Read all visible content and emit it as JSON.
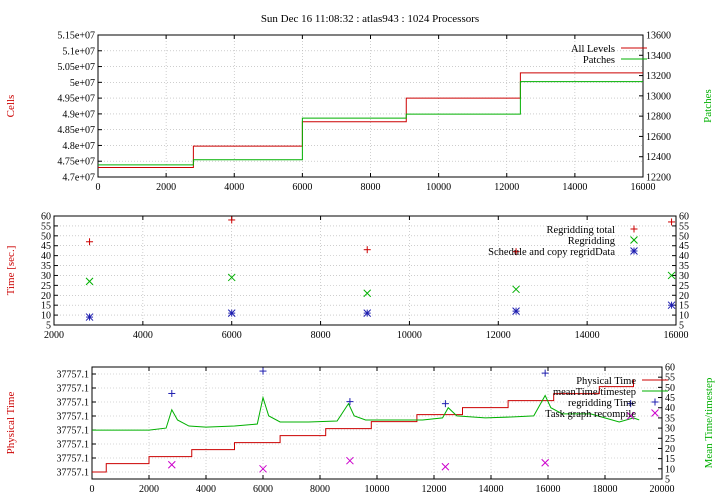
{
  "title": "Sun Dec 16 11:08:32 : atlas943 : 1024 Processors",
  "colors": {
    "red": "#cc0000",
    "green": "#00b000",
    "blue": "#1f1fb0",
    "magenta": "#cc00cc",
    "grid": "#b0b0b0",
    "axis": "#000000"
  },
  "chart_data": [
    {
      "type": "line",
      "ylabel": "Cells",
      "y2label": "Patches",
      "xlim": [
        0,
        16000
      ],
      "ylim": [
        47000000,
        51500000
      ],
      "y2lim": [
        12200,
        13600
      ],
      "xticks": [
        0,
        2000,
        4000,
        6000,
        8000,
        10000,
        12000,
        14000,
        16000
      ],
      "yticks": [
        {
          "v": 47000000,
          "label": "4.7e+07"
        },
        {
          "v": 47500000,
          "label": "4.75e+07"
        },
        {
          "v": 48000000,
          "label": "4.8e+07"
        },
        {
          "v": 48500000,
          "label": "4.85e+07"
        },
        {
          "v": 49000000,
          "label": "4.9e+07"
        },
        {
          "v": 49500000,
          "label": "4.95e+07"
        },
        {
          "v": 50000000,
          "label": "5e+07"
        },
        {
          "v": 50500000,
          "label": "5.05e+07"
        },
        {
          "v": 51000000,
          "label": "5.1e+07"
        },
        {
          "v": 51500000,
          "label": "5.15e+07"
        }
      ],
      "y2ticks": [
        12200,
        12400,
        12600,
        12800,
        13000,
        13200,
        13400,
        13600
      ],
      "grid": true,
      "legend": "top-right",
      "series": [
        {
          "name": "All Levels",
          "color": "#cc0000",
          "axis": "y",
          "step": true,
          "x": [
            0,
            2800,
            6000,
            9050,
            12400,
            16000
          ],
          "y": [
            47300000,
            47980000,
            48750000,
            49500000,
            50300000,
            50300000
          ]
        },
        {
          "name": "Patches",
          "color": "#00b000",
          "axis": "y2",
          "step": true,
          "x": [
            0,
            2800,
            6000,
            9050,
            12400,
            16000
          ],
          "y": [
            12320,
            12370,
            12780,
            12820,
            13140,
            13140
          ]
        }
      ]
    },
    {
      "type": "scatter",
      "ylabel": "Time [sec.]",
      "xlim": [
        2000,
        16000
      ],
      "ylim": [
        5,
        60
      ],
      "y2lim": [
        5,
        60
      ],
      "xticks": [
        2000,
        4000,
        6000,
        8000,
        10000,
        12000,
        14000,
        16000
      ],
      "yticks": [
        5,
        10,
        15,
        20,
        25,
        30,
        35,
        40,
        45,
        50,
        55,
        60
      ],
      "grid": true,
      "legend": "top-right",
      "series": [
        {
          "name": "Regridding total",
          "color": "#cc0000",
          "marker": "+",
          "x": [
            2800,
            6000,
            9050,
            12400,
            15900
          ],
          "y": [
            47,
            58,
            43,
            42,
            57
          ]
        },
        {
          "name": "Regridding",
          "color": "#00b000",
          "marker": "x",
          "x": [
            2800,
            6000,
            9050,
            12400,
            15900
          ],
          "y": [
            27,
            29,
            21,
            23,
            30
          ]
        },
        {
          "name": "Schedule and copy regridData",
          "color": "#1f1fb0",
          "marker": "*",
          "x": [
            2800,
            6000,
            9050,
            12400,
            15900
          ],
          "y": [
            9,
            11,
            11,
            12,
            15
          ]
        }
      ]
    },
    {
      "type": "line",
      "ylabel": "Physical Time",
      "y2label": "Mean Time/timestep",
      "xlim": [
        0,
        20000
      ],
      "ylim": [
        0,
        8
      ],
      "y2lim": [
        5,
        60
      ],
      "xticks": [
        0,
        2000,
        4000,
        6000,
        8000,
        10000,
        12000,
        14000,
        16000,
        18000,
        20000
      ],
      "ytick_labels": [
        "37757.1",
        "37757.1",
        "37757.1",
        "37757.1",
        "37757.1",
        "37757.1",
        "37757.1",
        "37757.1"
      ],
      "y2ticks": [
        5,
        10,
        15,
        20,
        25,
        30,
        35,
        40,
        45,
        50,
        55,
        60
      ],
      "grid": true,
      "legend": "top-right",
      "series": [
        {
          "name": "Physical Time",
          "color": "#cc0000",
          "axis": "y",
          "step": true,
          "x": [
            0,
            500,
            2000,
            3500,
            5000,
            6600,
            8200,
            9800,
            11400,
            13000,
            14600,
            16200,
            17800,
            19000
          ],
          "y": [
            0.5,
            1.1,
            1.6,
            2.1,
            2.6,
            3.1,
            3.6,
            4.1,
            4.6,
            5.1,
            5.6,
            6.1,
            6.6,
            7.1
          ]
        },
        {
          "name": "meanTime/timestep",
          "color": "#00b000",
          "axis": "y2",
          "x": [
            0,
            1000,
            2000,
            2600,
            2800,
            3000,
            3400,
            4000,
            5000,
            5800,
            6000,
            6200,
            6600,
            7600,
            8600,
            9000,
            9200,
            9600,
            10600,
            11600,
            12300,
            12500,
            12800,
            13800,
            14800,
            15500,
            15900,
            16100,
            16500,
            17500,
            18500,
            19000,
            19200
          ],
          "y": [
            29,
            29,
            29,
            30,
            39,
            34,
            31,
            30.5,
            31,
            32,
            45,
            36,
            33,
            33,
            33.5,
            42,
            36,
            34,
            34,
            34,
            35,
            40,
            36,
            35,
            35.5,
            36,
            46,
            40,
            37,
            37,
            33,
            35,
            34
          ]
        },
        {
          "name": "regridding Time",
          "color": "#1f1fb0",
          "axis": "y2",
          "marker": "+",
          "x": [
            2800,
            6000,
            9050,
            12400,
            15900,
            18900
          ],
          "y": [
            47,
            58,
            43,
            42,
            57,
            42
          ]
        },
        {
          "name": "Task graph recompile",
          "color": "#cc00cc",
          "axis": "y2",
          "marker": "x",
          "x": [
            2800,
            6000,
            9050,
            12400,
            15900,
            18900
          ],
          "y": [
            12,
            10,
            14,
            11,
            13,
            36
          ]
        }
      ]
    }
  ]
}
